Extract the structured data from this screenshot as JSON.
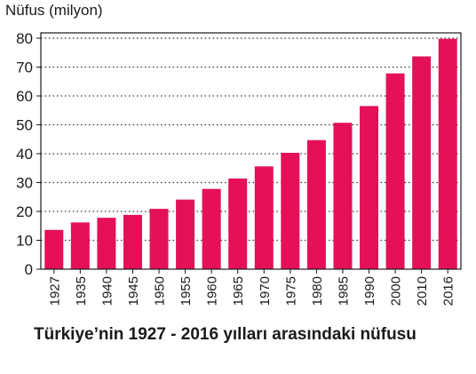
{
  "chart_data": {
    "type": "bar",
    "ylabel": "Nüfus (milyon)",
    "ylim": [
      0,
      80
    ],
    "yticks": [
      0,
      10,
      20,
      30,
      40,
      50,
      60,
      70,
      80
    ],
    "categories": [
      "1927",
      "1935",
      "1940",
      "1945",
      "1950",
      "1955",
      "1960",
      "1965",
      "1970",
      "1975",
      "1980",
      "1985",
      "1990",
      "2000",
      "2010",
      "2016"
    ],
    "values": [
      13.6,
      16.2,
      17.8,
      18.8,
      20.9,
      24.1,
      27.8,
      31.4,
      35.6,
      40.3,
      44.7,
      50.7,
      56.5,
      67.8,
      73.7,
      79.8
    ],
    "bar_color": "#e4105a",
    "grid": "dotted horizontal",
    "caption": "Türkiye’nin 1927 - 2016 yılları arasındaki nüfusu"
  }
}
